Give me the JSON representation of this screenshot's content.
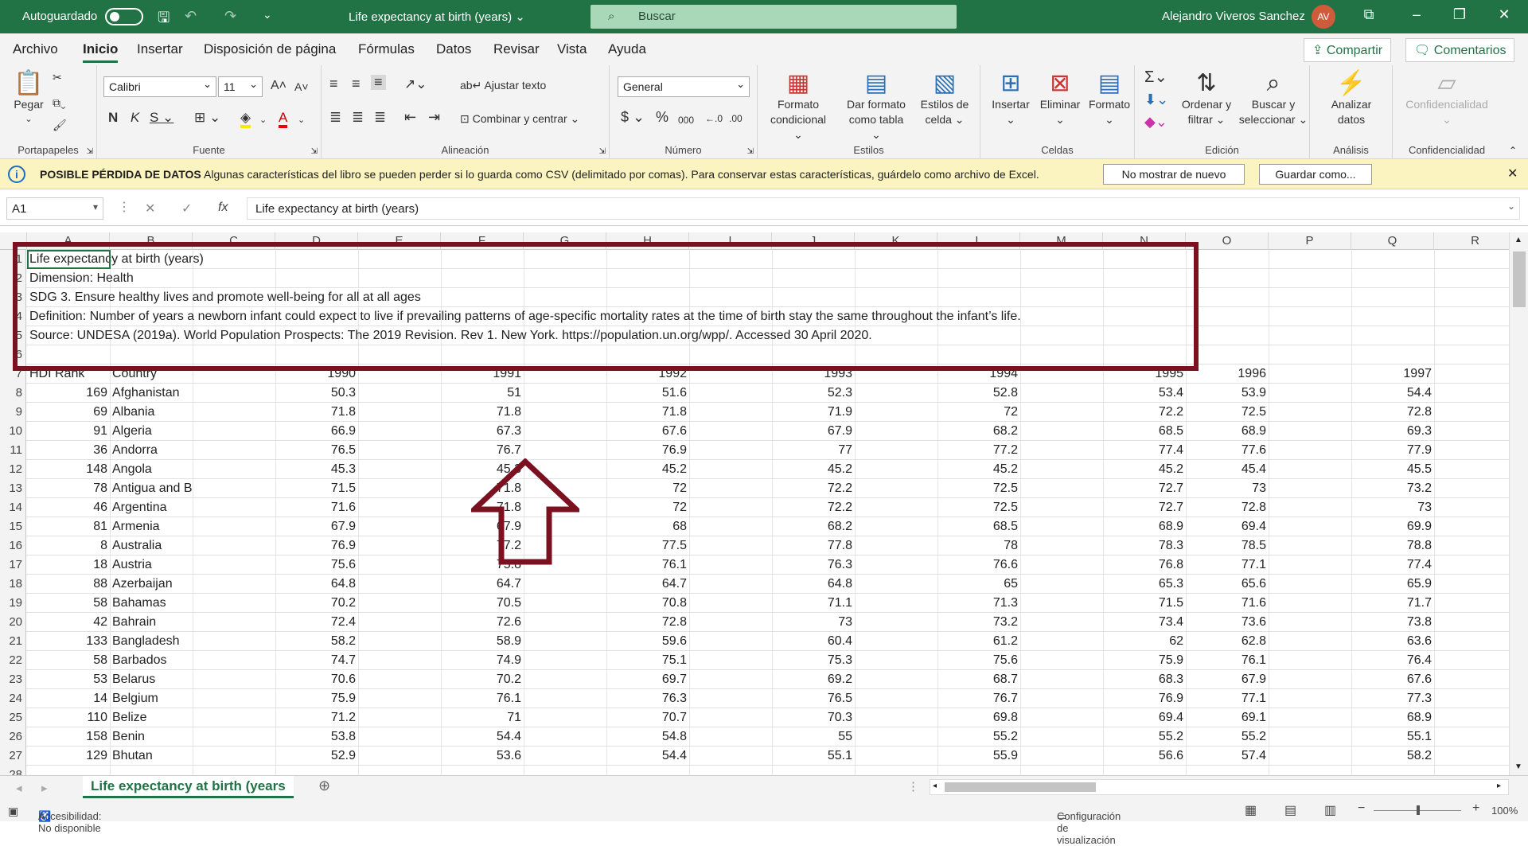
{
  "titlebar": {
    "autosave_label": "Autoguardado",
    "doc_title": "Life expectancy at birth (years)",
    "search_placeholder": "Buscar",
    "user_name": "Alejandro Viveros Sanchez",
    "user_initials": "AV"
  },
  "menu": {
    "tabs": [
      "Archivo",
      "Inicio",
      "Insertar",
      "Disposición de página",
      "Fórmulas",
      "Datos",
      "Revisar",
      "Vista",
      "Ayuda"
    ],
    "share": "Compartir",
    "comments": "Comentarios"
  },
  "ribbon": {
    "paste": "Pegar",
    "font_name": "Calibri",
    "font_size": "11",
    "wrap_text": "Ajustar texto",
    "merge_center": "Combinar y centrar",
    "number_format": "General",
    "cond_format_1": "Formato",
    "cond_format_2": "condicional",
    "format_table_1": "Dar formato",
    "format_table_2": "como tabla",
    "cell_styles_1": "Estilos de",
    "cell_styles_2": "celda",
    "insert": "Insertar",
    "delete": "Eliminar",
    "format": "Formato",
    "sort_1": "Ordenar y",
    "sort_2": "filtrar",
    "find_1": "Buscar y",
    "find_2": "seleccionar",
    "analyze_1": "Analizar",
    "analyze_2": "datos",
    "confidential": "Confidencialidad",
    "groups": [
      "Portapapeles",
      "Fuente",
      "Alineación",
      "Número",
      "Estilos",
      "Celdas",
      "Edición",
      "Análisis",
      "Confidencialidad"
    ]
  },
  "infobar": {
    "title": "POSIBLE PÉRDIDA DE DATOS",
    "message": "Algunas características del libro se pueden perder si lo guarda como CSV (delimitado por comas). Para conservar estas características, guárdelo como archivo de Excel.",
    "btn_dismiss": "No mostrar de nuevo",
    "btn_saveas": "Guardar como..."
  },
  "formula": {
    "namebox": "A1",
    "fx": "fx",
    "content": "Life expectancy at birth (years)"
  },
  "columns": [
    "A",
    "B",
    "C",
    "D",
    "E",
    "F",
    "G",
    "H",
    "I",
    "J",
    "K",
    "L",
    "M",
    "N",
    "O",
    "P",
    "Q",
    "R"
  ],
  "info_rows": [
    "Life expectancy at birth (years)",
    "Dimension: Health",
    "SDG 3. Ensure healthy lives and promote well-being for all at all ages",
    "Definition: Number of years a newborn infant could expect to live if prevailing patterns of age-specific mortality rates at the time of birth stay the same throughout the infant’s life.",
    "Source: UNDESA (2019a). World Population Prospects: The 2019 Revision. Rev 1. New York. https://population.un.org/wpp/. Accessed 30 April 2020.",
    ""
  ],
  "header_row": {
    "num": "7",
    "cells": [
      "HDI Rank",
      "Country",
      "1990",
      "1991",
      "1992",
      "1993",
      "1994",
      "1995",
      "1996",
      "1997"
    ]
  },
  "data_rows": [
    {
      "num": "8",
      "cells": [
        "169",
        "Afghanistan",
        "50.3",
        "51",
        "51.6",
        "52.3",
        "52.8",
        "53.4",
        "53.9",
        "54.4"
      ]
    },
    {
      "num": "9",
      "cells": [
        "69",
        "Albania",
        "71.8",
        "71.8",
        "71.8",
        "71.9",
        "72",
        "72.2",
        "72.5",
        "72.8"
      ]
    },
    {
      "num": "10",
      "cells": [
        "91",
        "Algeria",
        "66.9",
        "67.3",
        "67.6",
        "67.9",
        "68.2",
        "68.5",
        "68.9",
        "69.3"
      ]
    },
    {
      "num": "11",
      "cells": [
        "36",
        "Andorra",
        "76.5",
        "76.7",
        "76.9",
        "77",
        "77.2",
        "77.4",
        "77.6",
        "77.9"
      ]
    },
    {
      "num": "12",
      "cells": [
        "148",
        "Angola",
        "45.3",
        "45.3",
        "45.2",
        "45.2",
        "45.2",
        "45.2",
        "45.4",
        "45.5"
      ]
    },
    {
      "num": "13",
      "cells": [
        "78",
        "Antigua and B",
        "71.5",
        "71.8",
        "72",
        "72.2",
        "72.5",
        "72.7",
        "73",
        "73.2"
      ]
    },
    {
      "num": "14",
      "cells": [
        "46",
        "Argentina",
        "71.6",
        "71.8",
        "72",
        "72.2",
        "72.5",
        "72.7",
        "72.8",
        "73"
      ]
    },
    {
      "num": "15",
      "cells": [
        "81",
        "Armenia",
        "67.9",
        "67.9",
        "68",
        "68.2",
        "68.5",
        "68.9",
        "69.4",
        "69.9"
      ]
    },
    {
      "num": "16",
      "cells": [
        "8",
        "Australia",
        "76.9",
        "77.2",
        "77.5",
        "77.8",
        "78",
        "78.3",
        "78.5",
        "78.8"
      ]
    },
    {
      "num": "17",
      "cells": [
        "18",
        "Austria",
        "75.6",
        "75.8",
        "76.1",
        "76.3",
        "76.6",
        "76.8",
        "77.1",
        "77.4"
      ]
    },
    {
      "num": "18",
      "cells": [
        "88",
        "Azerbaijan",
        "64.8",
        "64.7",
        "64.7",
        "64.8",
        "65",
        "65.3",
        "65.6",
        "65.9"
      ]
    },
    {
      "num": "19",
      "cells": [
        "58",
        "Bahamas",
        "70.2",
        "70.5",
        "70.8",
        "71.1",
        "71.3",
        "71.5",
        "71.6",
        "71.7"
      ]
    },
    {
      "num": "20",
      "cells": [
        "42",
        "Bahrain",
        "72.4",
        "72.6",
        "72.8",
        "73",
        "73.2",
        "73.4",
        "73.6",
        "73.8"
      ]
    },
    {
      "num": "21",
      "cells": [
        "133",
        "Bangladesh",
        "58.2",
        "58.9",
        "59.6",
        "60.4",
        "61.2",
        "62",
        "62.8",
        "63.6"
      ]
    },
    {
      "num": "22",
      "cells": [
        "58",
        "Barbados",
        "74.7",
        "74.9",
        "75.1",
        "75.3",
        "75.6",
        "75.9",
        "76.1",
        "76.4"
      ]
    },
    {
      "num": "23",
      "cells": [
        "53",
        "Belarus",
        "70.6",
        "70.2",
        "69.7",
        "69.2",
        "68.7",
        "68.3",
        "67.9",
        "67.6"
      ]
    },
    {
      "num": "24",
      "cells": [
        "14",
        "Belgium",
        "75.9",
        "76.1",
        "76.3",
        "76.5",
        "76.7",
        "76.9",
        "77.1",
        "77.3"
      ]
    },
    {
      "num": "25",
      "cells": [
        "110",
        "Belize",
        "71.2",
        "71",
        "70.7",
        "70.3",
        "69.8",
        "69.4",
        "69.1",
        "68.9"
      ]
    },
    {
      "num": "26",
      "cells": [
        "158",
        "Benin",
        "53.8",
        "54.4",
        "54.8",
        "55",
        "55.2",
        "55.2",
        "55.2",
        "55.1"
      ]
    },
    {
      "num": "27",
      "cells": [
        "129",
        "Bhutan",
        "52.9",
        "53.6",
        "54.4",
        "55.1",
        "55.9",
        "56.6",
        "57.4",
        "58.2"
      ]
    }
  ],
  "sheet_tab": "Life expectancy at birth (years",
  "status": {
    "accessibility": "Accesibilidad: No disponible",
    "display_settings": "Configuración de visualización",
    "zoom": "100%"
  },
  "colors": {
    "excel_green": "#217346",
    "annotation": "#7a1020"
  }
}
